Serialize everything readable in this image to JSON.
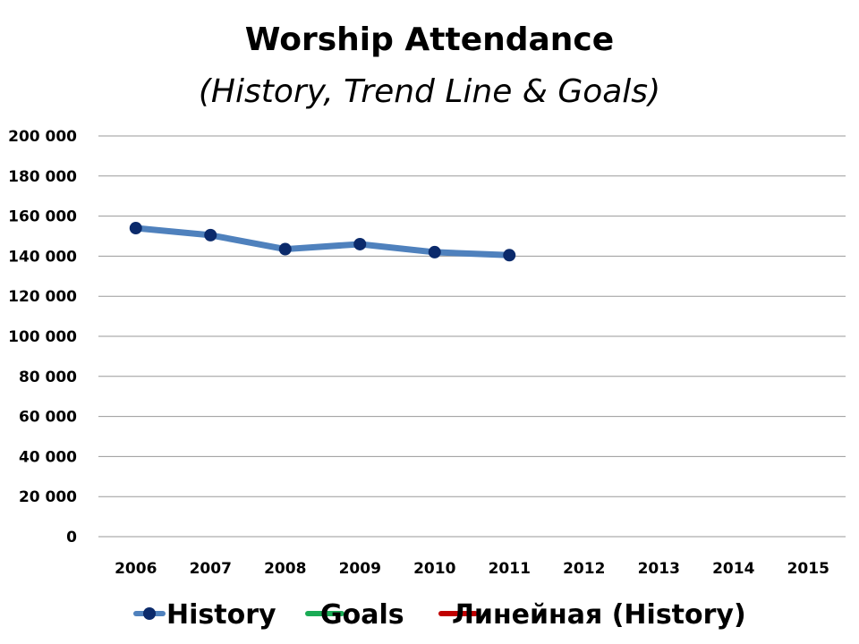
{
  "chart_data": {
    "type": "line",
    "title": "Worship Attendance",
    "subtitle": "(History, Trend Line & Goals)",
    "categories": [
      "2006",
      "2007",
      "2008",
      "2009",
      "2010",
      "2011",
      "2012",
      "2013",
      "2014",
      "2015"
    ],
    "ylim": [
      0,
      200000
    ],
    "yticks": [
      0,
      20000,
      40000,
      60000,
      80000,
      100000,
      120000,
      140000,
      160000,
      180000,
      200000
    ],
    "ytick_labels": [
      "0",
      "20 000",
      "40 000",
      "60 000",
      "80 000",
      "100 000",
      "120 000",
      "140 000",
      "160 000",
      "180 000",
      "200 000"
    ],
    "grid": true,
    "legend_position": "bottom",
    "series": [
      {
        "name": "History",
        "values": [
          154000,
          150500,
          143500,
          146000,
          142000,
          140500,
          null,
          null,
          null,
          null
        ],
        "color": "#4f81bd",
        "marker_color": "#0b2a6b"
      },
      {
        "name": "Goals",
        "values": [
          null,
          null,
          null,
          null,
          null,
          null,
          null,
          null,
          null,
          null
        ],
        "color": "#1aab55"
      },
      {
        "name": "Линейная (History)",
        "values": [
          null,
          null,
          null,
          null,
          null,
          null,
          null,
          null,
          null,
          null
        ],
        "color": "#c00000"
      }
    ]
  }
}
